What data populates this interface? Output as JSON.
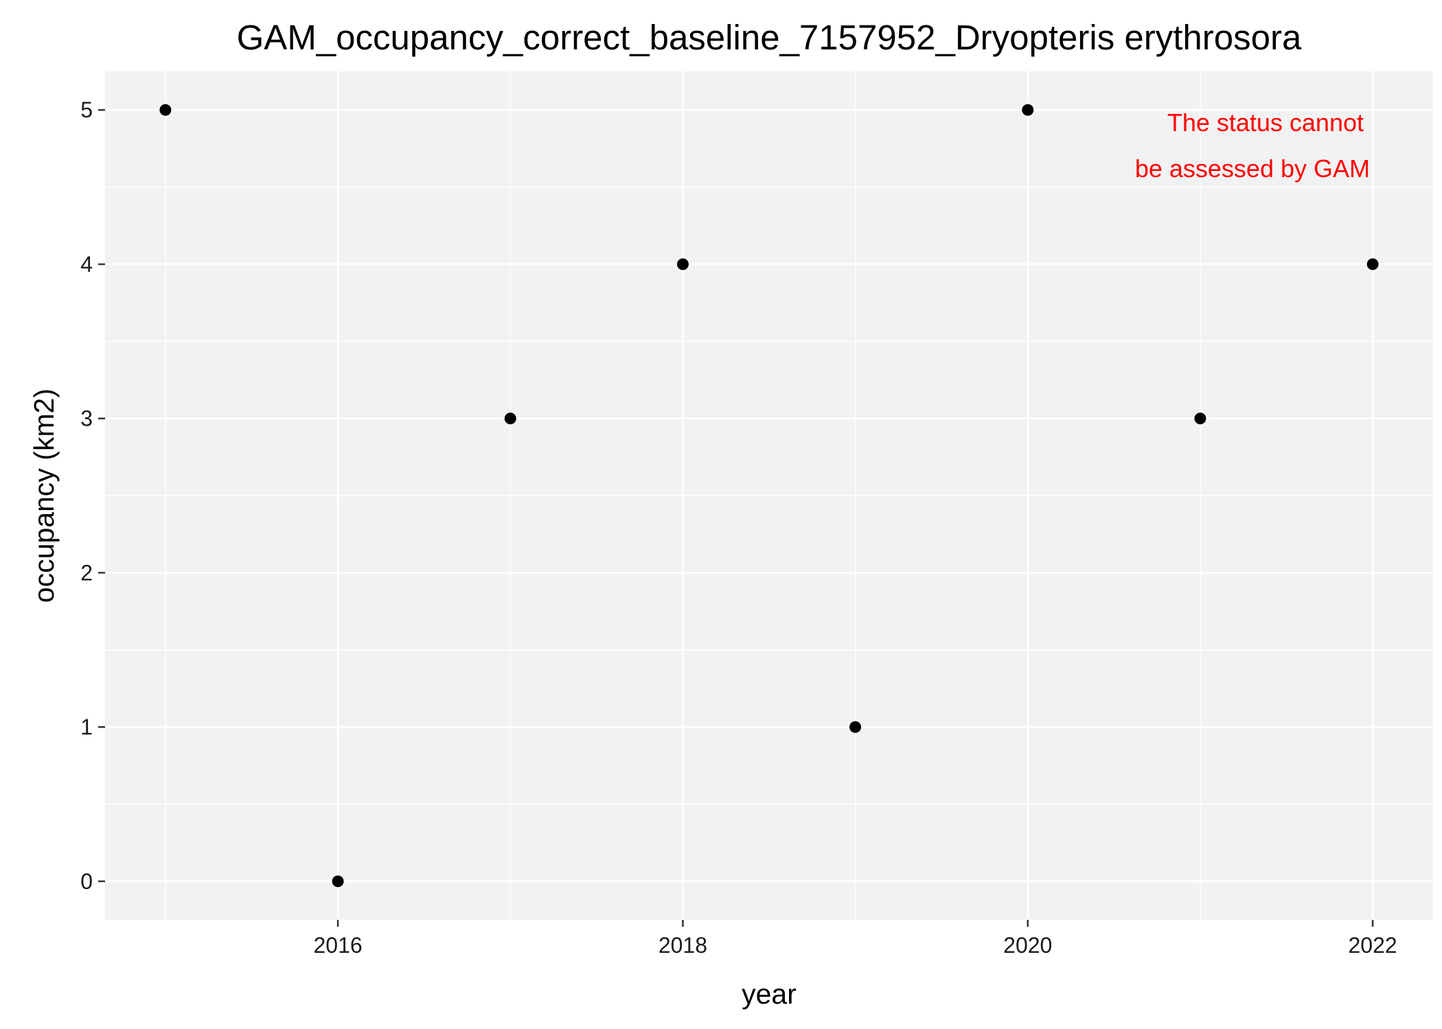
{
  "chart_data": {
    "type": "scatter",
    "title": "GAM_occupancy_correct_baseline_7157952_Dryopteris erythrosora",
    "xlabel": "year",
    "ylabel": "occupancy (km2)",
    "x": [
      2015,
      2016,
      2017,
      2018,
      2019,
      2020,
      2021,
      2022
    ],
    "y": [
      5,
      0,
      3,
      4,
      1,
      5,
      3,
      4
    ],
    "xlim": [
      2014.65,
      2022.35
    ],
    "ylim": [
      -0.25,
      5.25
    ],
    "x_ticks": [
      2016,
      2018,
      2020,
      2022
    ],
    "y_ticks": [
      0,
      1,
      2,
      3,
      4,
      5
    ],
    "grid": true,
    "legend": "none",
    "annotation": {
      "lines": [
        "The status cannot",
        "be assessed by GAM"
      ],
      "color": "#ff0000"
    },
    "colors": {
      "panel_background": "#f2f2f2",
      "grid_line": "#ffffff",
      "point": "#000000"
    }
  }
}
